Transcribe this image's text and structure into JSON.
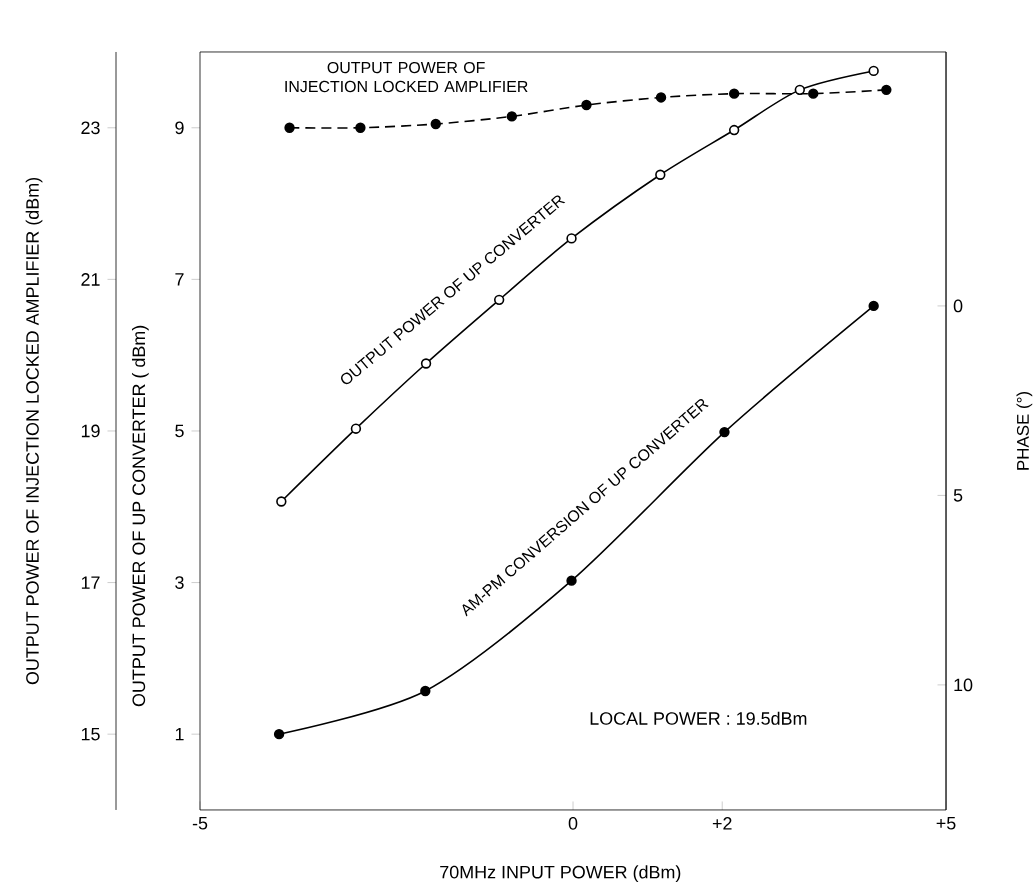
{
  "chart_data": {
    "type": "line",
    "xlabel": "70MHz INPUT POWER (dBm)",
    "ylabel": "OUTPUT POWER OF UP CONVERTER ( dBm)",
    "y2label": "PHASE (°)",
    "y3label": "OUTPUT POWER OF INJECTION LOCKED AMPLIFIER (dBm)",
    "xlim": [
      -5,
      5
    ],
    "xticks": [
      -5,
      0,
      {
        "value": 2,
        "label": "+2"
      },
      {
        "value": 5,
        "label": "+5"
      }
    ],
    "ylim": [
      0,
      10
    ],
    "yticks": [
      1,
      3,
      5,
      7,
      9
    ],
    "y2lim": [
      13.3,
      -6.7
    ],
    "y2ticks": [
      0,
      5,
      10
    ],
    "y3lim": [
      14,
      24
    ],
    "y3ticks": [
      15,
      17,
      19,
      21,
      23
    ],
    "marker": "circle",
    "annotations": [
      {
        "text": "LOCAL POWER : 19.5dBm"
      }
    ],
    "series": [
      {
        "name": "OUTPUT POWER OF INJECTION LOCKED AMPLIFIER",
        "color": "#000000",
        "axis": "y3",
        "line_style": "dashed",
        "x": [
          -3.8,
          -2.85,
          -1.84,
          -0.82,
          0.18,
          1.18,
          2.16,
          3.22,
          4.2
        ],
        "values": [
          23.0,
          23.0,
          23.05,
          23.15,
          23.3,
          23.4,
          23.45,
          23.45,
          23.5
        ]
      },
      {
        "name": "OUTPUT POWER OF UP CONVERTER",
        "color": "#000000",
        "line_style": "solid",
        "x": [
          -3.91,
          -2.91,
          -1.97,
          -0.99,
          -0.02,
          1.17,
          2.16,
          3.04,
          4.03
        ],
        "values": [
          4.07,
          5.03,
          5.89,
          6.73,
          7.54,
          8.38,
          8.97,
          9.5,
          9.75
        ]
      },
      {
        "name": "AM-PM CONVERSION OF UP CONVERTER",
        "color": "#000000",
        "axis": "y2",
        "line_style": "solid",
        "x": [
          -3.94,
          -1.98,
          -0.02,
          2.03,
          4.03
        ],
        "values": [
          11.3,
          10.16,
          7.25,
          3.33,
          0.0
        ]
      }
    ]
  }
}
